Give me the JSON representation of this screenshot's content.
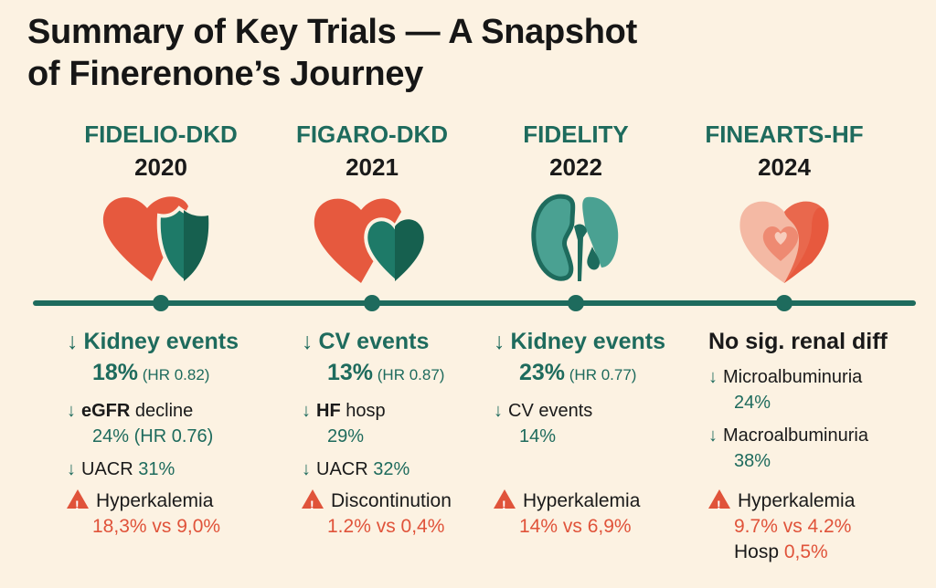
{
  "title_line1": "Summary of Key Trials — A Snapshot",
  "title_line2": "of Finerenone’s Journey",
  "colors": {
    "teal": "#1e6b5d",
    "red": "#e0533a",
    "background": "#fcf2e2"
  },
  "trials": [
    {
      "name": "FIDELIO-DKD",
      "year": "2020",
      "icon": "heart-shield-icon",
      "groups": [
        {
          "lines": [
            [
              {
                "arrow": true
              },
              {
                "text": "Kidney events",
                "style": "teal-bold"
              }
            ],
            [
              {
                "text": "18%",
                "style": "teal-bold"
              },
              {
                "text": " (HR 0.82)",
                "style": "small"
              }
            ]
          ],
          "big": true
        },
        {
          "lines": [
            [
              {
                "arrow": true
              },
              {
                "text": "eGFR",
                "style": "dark-bold"
              },
              {
                "text": " decline",
                "style": "dark"
              }
            ],
            [
              {
                "text": "24% (HR 0.76)",
                "style": "teal"
              }
            ]
          ]
        },
        {
          "lines": [
            [
              {
                "arrow": true
              },
              {
                "text": "UACR",
                "style": "dark"
              },
              {
                "text": " 31%",
                "style": "teal"
              }
            ]
          ]
        }
      ],
      "warning": [
        [
          {
            "warn": true
          },
          {
            "text": "Hyperkalemia",
            "style": "dark"
          }
        ],
        [
          {
            "text": "18,3% vs 9,0%",
            "style": "red"
          }
        ]
      ]
    },
    {
      "name": "FIGARO-DKD",
      "year": "2021",
      "icon": "two-hearts-icon",
      "groups": [
        {
          "lines": [
            [
              {
                "arrow": true
              },
              {
                "text": "CV events",
                "style": "teal-bold"
              }
            ],
            [
              {
                "text": "13%",
                "style": "teal-bold"
              },
              {
                "text": " (HR 0.87)",
                "style": "small"
              }
            ]
          ],
          "big": true
        },
        {
          "lines": [
            [
              {
                "arrow": true
              },
              {
                "text": "HF",
                "style": "dark-bold"
              },
              {
                "text": " hosp",
                "style": "dark"
              }
            ],
            [
              {
                "text": "29%",
                "style": "teal"
              }
            ]
          ]
        },
        {
          "lines": [
            [
              {
                "arrow": true
              },
              {
                "text": "UACR",
                "style": "dark"
              },
              {
                "text": " 32%",
                "style": "teal"
              }
            ]
          ]
        }
      ],
      "warning": [
        [
          {
            "warn": true
          },
          {
            "text": "Discontinution",
            "style": "dark"
          }
        ],
        [
          {
            "text": "1.2% vs 0,4%",
            "style": "red"
          }
        ]
      ]
    },
    {
      "name": "FIDELITY",
      "year": "2022",
      "icon": "kidney-icon",
      "groups": [
        {
          "lines": [
            [
              {
                "arrow": true
              },
              {
                "text": "Kidney events",
                "style": "teal-bold"
              }
            ],
            [
              {
                "text": "23%",
                "style": "teal-bold"
              },
              {
                "text": " (HR 0.77)",
                "style": "small"
              }
            ]
          ],
          "big": true
        },
        {
          "lines": [
            [
              {
                "arrow": true
              },
              {
                "text": "CV events",
                "style": "dark"
              }
            ],
            [
              {
                "text": "14%",
                "style": "teal"
              }
            ]
          ]
        }
      ],
      "warning": [
        [
          {
            "warn": true
          },
          {
            "text": "Hyperkalemia",
            "style": "dark"
          }
        ],
        [
          {
            "text": "14% vs 6,9%",
            "style": "red"
          }
        ]
      ]
    },
    {
      "name": "FINEARTS-HF",
      "year": "2024",
      "icon": "layered-heart-icon",
      "groups": [
        {
          "lines": [
            [
              {
                "text": "No sig. renal diff",
                "style": "dark-bold"
              }
            ]
          ],
          "big": true
        },
        {
          "lines": [
            [
              {
                "arrow": true
              },
              {
                "text": "Microalbuminuria",
                "style": "dark"
              }
            ],
            [
              {
                "text": "24%",
                "style": "teal"
              }
            ]
          ]
        },
        {
          "lines": [
            [
              {
                "arrow": true
              },
              {
                "text": "Macroalbuminuria",
                "style": "dark"
              }
            ],
            [
              {
                "text": "38%",
                "style": "teal"
              }
            ]
          ]
        }
      ],
      "warning": [
        [
          {
            "warn": true
          },
          {
            "text": "Hyperkalemia",
            "style": "dark"
          }
        ],
        [
          {
            "text": "9.7% vs 4.2%",
            "style": "red"
          }
        ],
        [
          {
            "text": "Hosp",
            "style": "dark"
          },
          {
            "text": " 0,5%",
            "style": "red"
          }
        ]
      ]
    }
  ]
}
